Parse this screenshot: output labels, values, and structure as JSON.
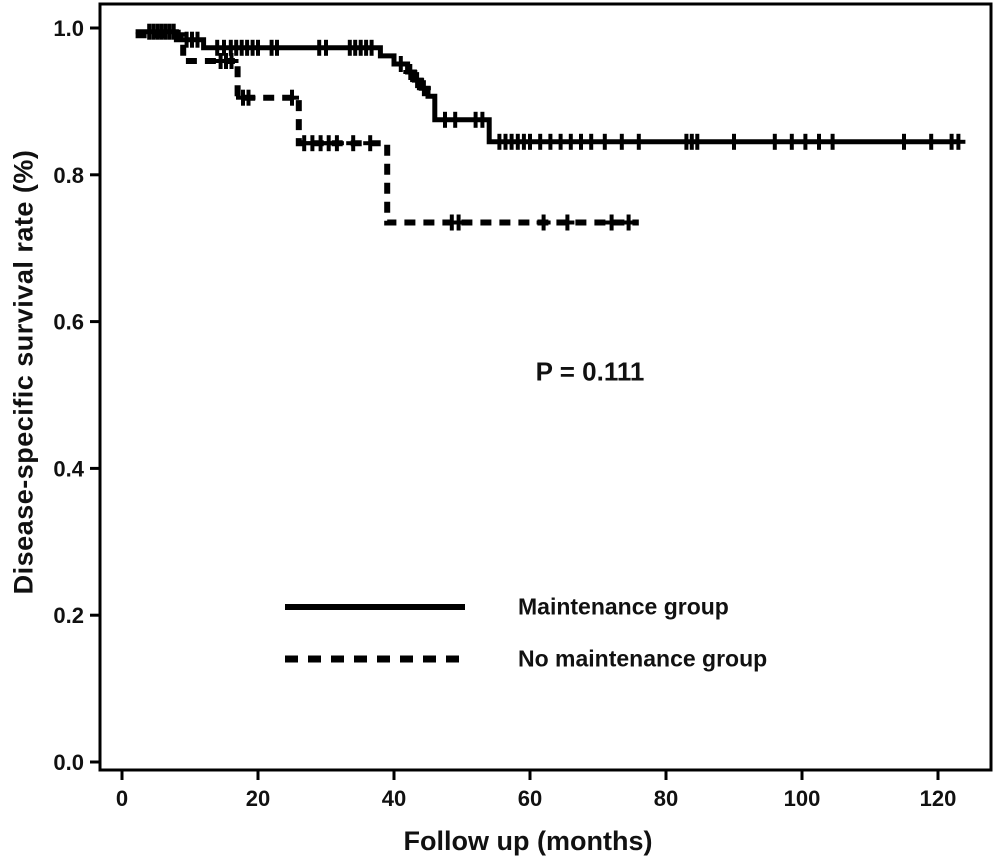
{
  "figure": {
    "background": "#ffffff",
    "line_color": "#000000"
  },
  "annotation": {
    "p_value": "P = 0.111"
  },
  "chart_data": {
    "type": "line",
    "subtype": "kaplan-meier-step",
    "title": "",
    "xlabel": "Follow up (months)",
    "ylabel": "Disease-specific survival rate  (%)",
    "xlim": [
      0,
      128
    ],
    "ylim": [
      0,
      1.03
    ],
    "xticks": [
      0,
      20,
      40,
      60,
      80,
      100,
      120
    ],
    "yticks": [
      0.0,
      0.2,
      0.4,
      0.6,
      0.8,
      1.0
    ],
    "grid": false,
    "legend_position": "inside-lower-center",
    "annotation": {
      "text": "P = 0.111",
      "x": 62,
      "y": 0.54
    },
    "series": [
      {
        "name": "Maintenance group",
        "style": "solid",
        "color": "#000000",
        "steps": [
          [
            2,
            0.995
          ],
          [
            8,
            0.984
          ],
          [
            12,
            0.973
          ],
          [
            38,
            0.962
          ],
          [
            40,
            0.951
          ],
          [
            42,
            0.94
          ],
          [
            43,
            0.929
          ],
          [
            44,
            0.918
          ],
          [
            45,
            0.907
          ],
          [
            46,
            0.875
          ],
          [
            54,
            0.845
          ]
        ],
        "end_time": 123,
        "censors": [
          4,
          4.6,
          5.2,
          5.8,
          6.4,
          7,
          7.6,
          9.5,
          10.3,
          11.1,
          14,
          15,
          16,
          16.8,
          17.6,
          18.4,
          19.2,
          20,
          22,
          22.8,
          29,
          30,
          33.5,
          34.3,
          35.1,
          35.9,
          36.7,
          41,
          42.4,
          43.4,
          44.4,
          47.5,
          49,
          52,
          53,
          55.5,
          56.4,
          57.3,
          58.2,
          59.1,
          60,
          61.5,
          63,
          64.5,
          66,
          67.5,
          69,
          71,
          73.5,
          76,
          83,
          83.8,
          84.6,
          90,
          96,
          98.5,
          100.5,
          102.5,
          104.5,
          115,
          119,
          122,
          123
        ]
      },
      {
        "name": "No maintenance group",
        "style": "dashed",
        "color": "#000000",
        "steps": [
          [
            2,
            0.99
          ],
          [
            9,
            0.955
          ],
          [
            17,
            0.905
          ],
          [
            26,
            0.843
          ],
          [
            39,
            0.735
          ]
        ],
        "end_time": 76,
        "censors": [
          14.5,
          15.3,
          16.1,
          17.8,
          18.6,
          25,
          26.8,
          28,
          29.2,
          30.4,
          31.6,
          34,
          36.5,
          48.5,
          49.5,
          62,
          65.5,
          72,
          74.5
        ]
      }
    ]
  }
}
